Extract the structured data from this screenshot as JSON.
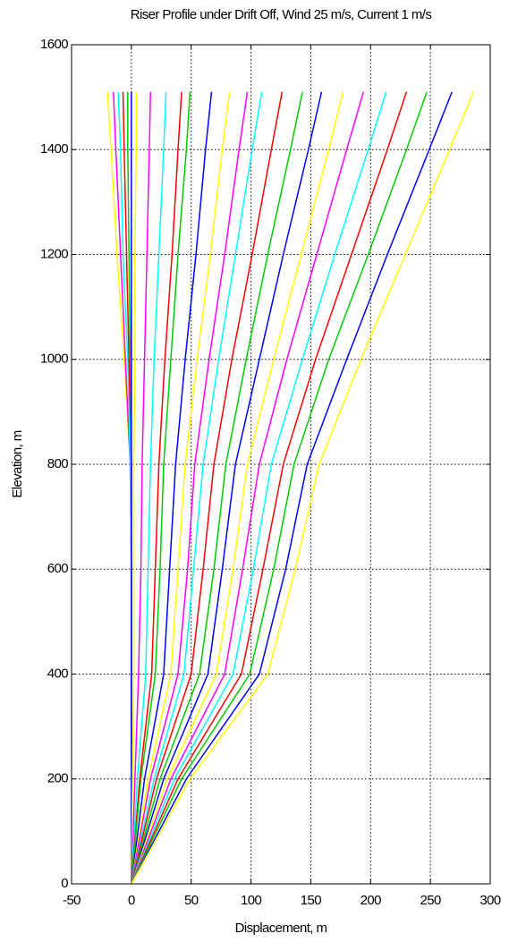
{
  "chart_data": {
    "type": "line",
    "title": "Riser Profile under Drift Off, Wind 25 m/s, Current 1 m/s",
    "xlabel": "Displacement, m",
    "ylabel": "Elevation, m",
    "y": [
      0,
      200,
      400,
      600,
      800,
      1000,
      1200,
      1400,
      1510
    ],
    "series": [
      {
        "color": "#ffff00",
        "values": [
          0,
          0,
          0,
          0,
          -1,
          -6,
          -12,
          -17,
          -20
        ]
      },
      {
        "color": "#ff00ff",
        "values": [
          0,
          0,
          0,
          0,
          -1,
          -5,
          -9,
          -13,
          -15
        ]
      },
      {
        "color": "#00ffff",
        "values": [
          0,
          0,
          0,
          0,
          -1,
          -3,
          -7,
          -9,
          -11
        ]
      },
      {
        "color": "#ff0000",
        "values": [
          0,
          0,
          0,
          0,
          0,
          -2,
          -4,
          -6,
          -7
        ]
      },
      {
        "color": "#00cc00",
        "values": [
          0,
          0,
          0,
          0,
          0,
          -1,
          -2,
          -3,
          -3
        ]
      },
      {
        "color": "#0000ff",
        "values": [
          0,
          0,
          0,
          0,
          0,
          0,
          0,
          0,
          0
        ]
      },
      {
        "color": "#ffff00",
        "values": [
          0,
          1,
          2,
          2,
          2,
          3,
          3,
          4,
          4
        ]
      },
      {
        "color": "#ff00ff",
        "values": [
          0,
          3,
          6,
          8,
          9,
          11,
          13,
          15,
          16
        ]
      },
      {
        "color": "#00ffff",
        "values": [
          0,
          5,
          12,
          14,
          16,
          19,
          23,
          27,
          29
        ]
      },
      {
        "color": "#ff0000",
        "values": [
          0,
          7,
          17,
          20,
          23,
          28,
          34,
          39,
          42
        ]
      },
      {
        "color": "#00cc00",
        "values": [
          0,
          8,
          20,
          24,
          27,
          33,
          39,
          46,
          49
        ]
      },
      {
        "color": "#0000ff",
        "values": [
          0,
          11,
          27,
          32,
          37,
          45,
          54,
          62,
          67
        ]
      },
      {
        "color": "#ffff00",
        "values": [
          0,
          14,
          33,
          39,
          45,
          55,
          66,
          76,
          82
        ]
      },
      {
        "color": "#ff00ff",
        "values": [
          0,
          16,
          39,
          47,
          53,
          65,
          78,
          90,
          97
        ]
      },
      {
        "color": "#00ffff",
        "values": [
          0,
          19,
          44,
          52,
          60,
          73,
          87,
          101,
          109
        ]
      },
      {
        "color": "#ff0000",
        "values": [
          0,
          21,
          50,
          60,
          69,
          84,
          101,
          117,
          126
        ]
      },
      {
        "color": "#00cc00",
        "values": [
          0,
          24,
          57,
          69,
          79,
          96,
          114,
          133,
          143
        ]
      },
      {
        "color": "#0000ff",
        "values": [
          0,
          27,
          64,
          76,
          87,
          107,
          127,
          148,
          159
        ]
      },
      {
        "color": "#ffff00",
        "values": [
          0,
          30,
          71,
          85,
          97,
          119,
          142,
          165,
          177
        ]
      },
      {
        "color": "#ff00ff",
        "values": [
          0,
          33,
          78,
          93,
          107,
          130,
          155,
          180,
          194
        ]
      },
      {
        "color": "#00ffff",
        "values": [
          0,
          36,
          85,
          102,
          117,
          143,
          170,
          198,
          213
        ]
      },
      {
        "color": "#ff0000",
        "values": [
          0,
          39,
          92,
          110,
          127,
          154,
          184,
          214,
          230
        ]
      },
      {
        "color": "#00cc00",
        "values": [
          0,
          42,
          99,
          119,
          136,
          165,
          198,
          230,
          247
        ]
      },
      {
        "color": "#0000ff",
        "values": [
          0,
          46,
          107,
          129,
          147,
          180,
          214,
          249,
          268
        ]
      },
      {
        "color": "#ffff00",
        "values": [
          0,
          49,
          114,
          137,
          157,
          192,
          229,
          266,
          286
        ]
      }
    ],
    "xlim": [
      -50,
      300
    ],
    "xticks": [
      -50,
      0,
      50,
      100,
      150,
      200,
      250,
      300
    ],
    "ylim": [
      0,
      1600
    ],
    "yticks": [
      0,
      200,
      400,
      600,
      800,
      1000,
      1200,
      1400,
      1600
    ],
    "grid": true
  }
}
